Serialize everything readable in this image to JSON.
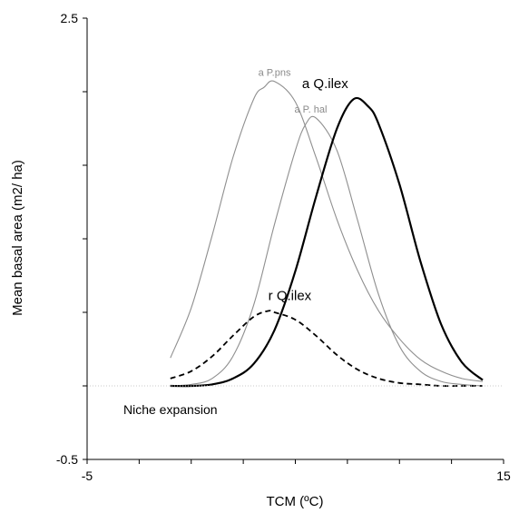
{
  "chart_data": {
    "type": "line",
    "xlabel": "TCM (ºC)",
    "ylabel": "Mean basal area (m2/ ha)",
    "xlim": [
      -5,
      15
    ],
    "ylim": [
      -0.5,
      2.5
    ],
    "x_ticks": [
      "-5",
      "15"
    ],
    "y_ticks": [
      "-0.5",
      "2.5"
    ],
    "grid": false,
    "reference_line_y": 0,
    "series": [
      {
        "name": "a P.pns",
        "style": "thin-gray",
        "x": [
          -1.0,
          0.0,
          1.0,
          2.0,
          3.0,
          3.5,
          4.0,
          5.0,
          6.0,
          7.0,
          8.0,
          9.0,
          10.0,
          11.0,
          12.0,
          13.0,
          14.0
        ],
        "y": [
          0.19,
          0.53,
          1.02,
          1.55,
          1.95,
          2.03,
          2.07,
          1.93,
          1.55,
          1.13,
          0.78,
          0.51,
          0.32,
          0.18,
          0.1,
          0.05,
          0.03
        ]
      },
      {
        "name": "a P. hal",
        "style": "thin-gray",
        "x": [
          -1.0,
          0.0,
          1.0,
          2.0,
          3.0,
          4.0,
          5.0,
          5.5,
          6.0,
          7.0,
          8.0,
          9.0,
          10.0,
          11.0,
          12.0,
          13.0,
          14.0
        ],
        "y": [
          0.0,
          0.01,
          0.05,
          0.2,
          0.55,
          1.1,
          1.6,
          1.78,
          1.82,
          1.6,
          1.12,
          0.62,
          0.27,
          0.1,
          0.03,
          0.01,
          0.0
        ]
      },
      {
        "name": "a Q.ilex",
        "style": "thick-black",
        "x": [
          -1.0,
          0.0,
          1.0,
          2.0,
          3.0,
          4.0,
          5.0,
          6.0,
          7.0,
          7.8,
          8.5,
          9.0,
          10.0,
          11.0,
          12.0,
          13.0,
          14.0
        ],
        "y": [
          0.0,
          0.0,
          0.01,
          0.05,
          0.15,
          0.38,
          0.78,
          1.29,
          1.75,
          1.95,
          1.9,
          1.78,
          1.37,
          0.85,
          0.42,
          0.16,
          0.04
        ]
      },
      {
        "name": "r Q.ilex",
        "style": "dashed-black",
        "x": [
          -1.0,
          0.0,
          1.0,
          2.0,
          3.0,
          3.7,
          4.0,
          5.0,
          6.0,
          7.0,
          8.0,
          9.0,
          10.0,
          11.0,
          12.0,
          13.0,
          14.0
        ],
        "y": [
          0.05,
          0.1,
          0.2,
          0.34,
          0.47,
          0.51,
          0.5,
          0.45,
          0.34,
          0.21,
          0.11,
          0.05,
          0.02,
          0.01,
          0.0,
          0.0,
          0.0
        ]
      }
    ],
    "annotations": [
      {
        "text": "a P.pns",
        "series": "a P.pns",
        "style": "small"
      },
      {
        "text": "a P. hal",
        "series": "a P. hal",
        "style": "small"
      },
      {
        "text": "a Q.ilex",
        "series": "a Q.ilex",
        "style": "big"
      },
      {
        "text": "r Q.ilex",
        "series": "r Q.ilex",
        "style": "big"
      },
      {
        "text": "Niche expansion",
        "style": "note"
      }
    ]
  }
}
